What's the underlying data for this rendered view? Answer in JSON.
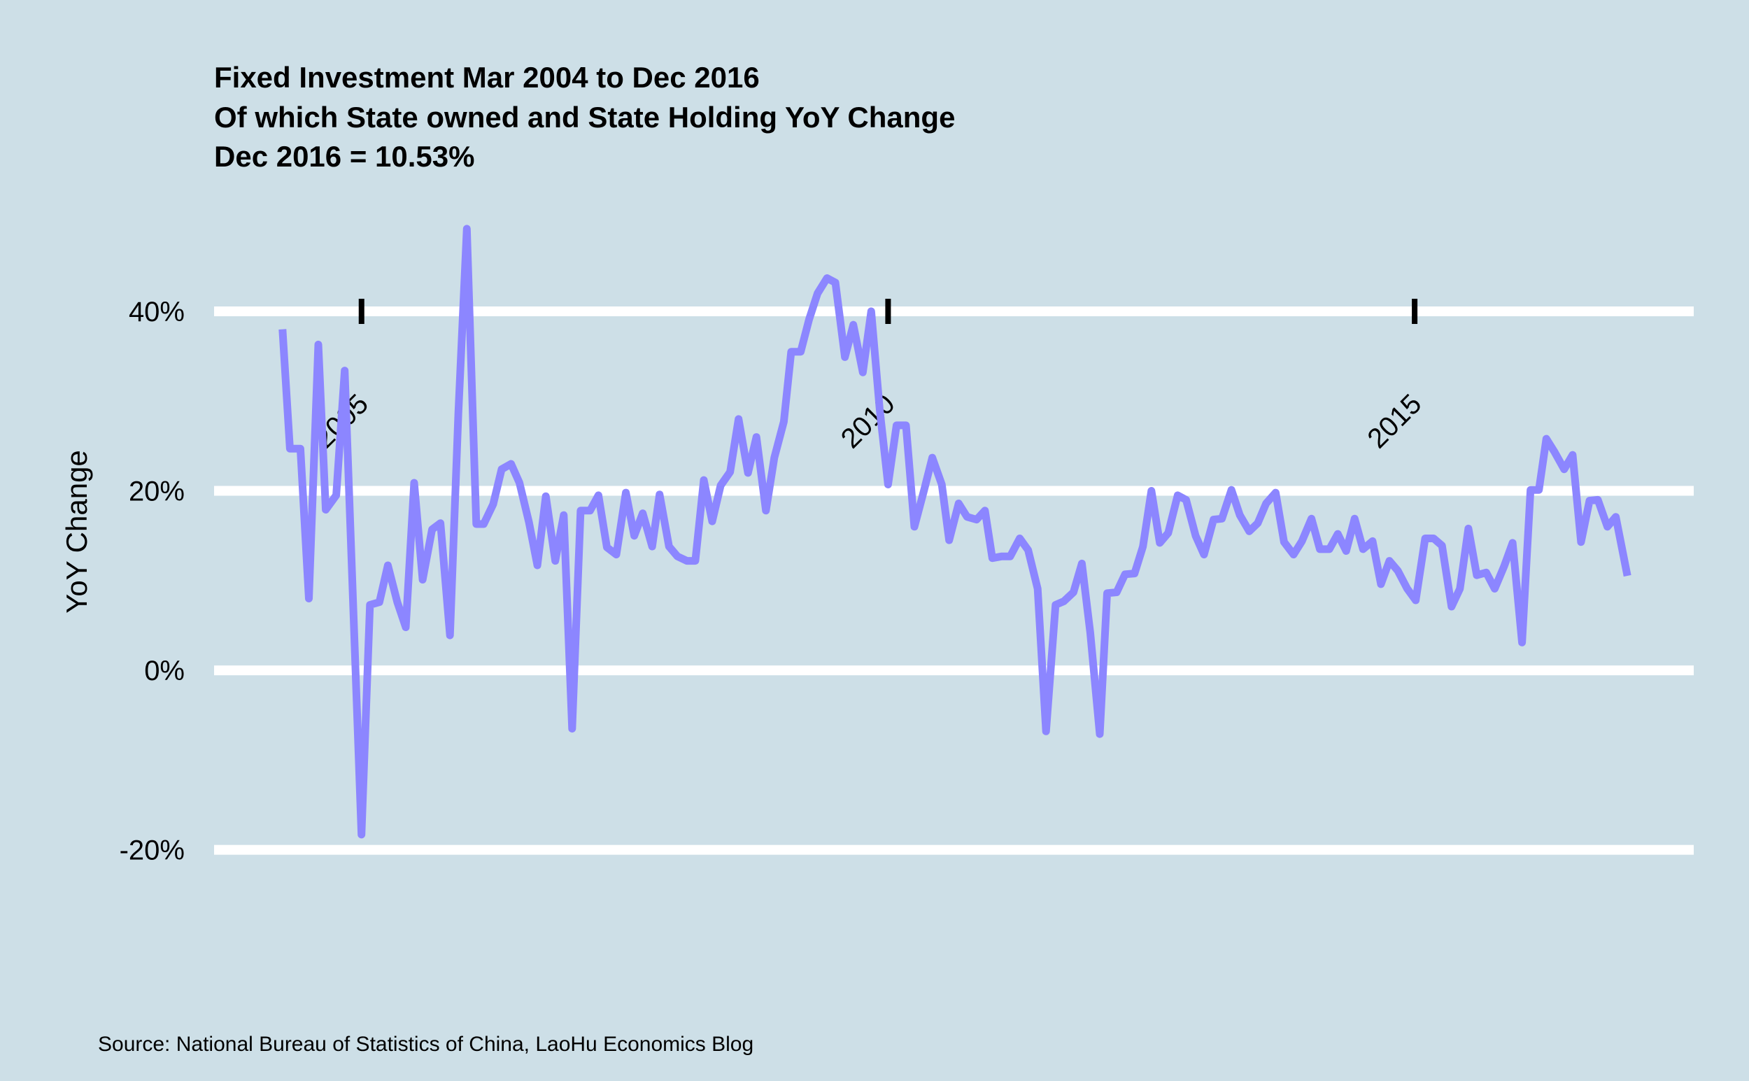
{
  "chart_data": {
    "type": "line",
    "title": [
      "Fixed Investment Mar 2004 to Dec 2016",
      "Of which  State owned and State Holding YoY Change",
      "Dec 2016 = 10.53%"
    ],
    "y_label": "YoY Change",
    "source": "Source: National Bureau of Statistics of China, LaoHu Economics Blog",
    "color": "#8c86ff",
    "x": [
      2004.25,
      2004.32,
      2004.42,
      2004.5,
      2004.59,
      2004.66,
      2004.76,
      2004.84,
      2005.0,
      2005.08,
      2005.17,
      2005.25,
      2005.34,
      2005.42,
      2005.5,
      2005.58,
      2005.67,
      2005.75,
      2005.84,
      2005.92,
      2006.0,
      2006.09,
      2006.16,
      2006.25,
      2006.33,
      2006.42,
      2006.5,
      2006.59,
      2006.67,
      2006.75,
      2006.84,
      2006.92,
      2007.0,
      2007.08,
      2007.17,
      2007.25,
      2007.33,
      2007.42,
      2007.51,
      2007.59,
      2007.67,
      2007.76,
      2007.83,
      2007.92,
      2008.0,
      2008.09,
      2008.17,
      2008.25,
      2008.33,
      2008.41,
      2008.5,
      2008.58,
      2008.67,
      2008.75,
      2008.84,
      2008.92,
      2009.01,
      2009.08,
      2009.17,
      2009.25,
      2009.33,
      2009.42,
      2009.5,
      2009.59,
      2009.67,
      2009.76,
      2009.84,
      2009.92,
      2010.0,
      2010.08,
      2010.17,
      2010.25,
      2010.34,
      2010.42,
      2010.51,
      2010.58,
      2010.67,
      2010.75,
      2010.84,
      2010.92,
      2010.99,
      2011.08,
      2011.16,
      2011.25,
      2011.33,
      2011.42,
      2011.5,
      2011.59,
      2011.67,
      2011.76,
      2011.84,
      2011.92,
      2012.01,
      2012.08,
      2012.17,
      2012.25,
      2012.34,
      2012.42,
      2012.5,
      2012.58,
      2012.66,
      2012.75,
      2012.83,
      2012.92,
      2013.0,
      2013.09,
      2013.17,
      2013.26,
      2013.34,
      2013.43,
      2013.51,
      2013.59,
      2013.68,
      2013.76,
      2013.85,
      2013.93,
      2014.02,
      2014.1,
      2014.19,
      2014.27,
      2014.35,
      2014.43,
      2014.51,
      2014.6,
      2014.68,
      2014.76,
      2014.84,
      2014.93,
      2015.01,
      2015.1,
      2015.18,
      2015.26,
      2015.35,
      2015.43,
      2015.51,
      2015.59,
      2015.68,
      2015.76,
      2015.85,
      2015.93,
      2016.02,
      2016.1,
      2016.18,
      2016.25,
      2016.33,
      2016.42,
      2016.5,
      2016.58,
      2016.66,
      2016.74,
      2016.83,
      2016.91,
      2017.02
    ],
    "values": [
      38.0,
      24.7,
      24.7,
      8.0,
      36.3,
      17.9,
      19.5,
      33.4,
      -18.3,
      7.3,
      7.6,
      11.7,
      7.6,
      4.8,
      20.9,
      10.1,
      15.7,
      16.4,
      3.9,
      28.7,
      49.2,
      16.3,
      16.3,
      18.5,
      22.4,
      23.0,
      20.9,
      16.5,
      11.7,
      19.4,
      12.2,
      17.3,
      -6.5,
      17.8,
      17.8,
      19.5,
      13.7,
      12.9,
      19.8,
      15.0,
      17.5,
      13.8,
      19.6,
      13.8,
      12.7,
      12.2,
      12.2,
      21.2,
      16.6,
      20.6,
      22.1,
      28.0,
      22.0,
      26.0,
      17.8,
      23.7,
      27.7,
      35.5,
      35.5,
      39.1,
      42.0,
      43.7,
      43.2,
      34.9,
      38.5,
      33.2,
      40.0,
      29.1,
      20.7,
      27.3,
      27.3,
      16.0,
      20.0,
      23.7,
      20.7,
      14.5,
      18.6,
      17.1,
      16.8,
      17.8,
      12.5,
      12.7,
      12.7,
      14.7,
      13.4,
      9.1,
      -6.8,
      7.3,
      7.7,
      8.7,
      11.9,
      4.2,
      -7.1,
      8.6,
      8.7,
      10.7,
      10.8,
      13.8,
      20.0,
      14.2,
      15.3,
      19.5,
      19.0,
      15.0,
      12.9,
      16.8,
      16.9,
      20.1,
      17.3,
      15.5,
      16.4,
      18.6,
      19.8,
      14.3,
      12.9,
      14.4,
      16.9,
      13.5,
      13.5,
      15.2,
      13.3,
      16.9,
      13.5,
      14.4,
      9.6,
      12.2,
      11.1,
      9.1,
      7.8,
      14.7,
      14.7,
      13.9,
      7.1,
      9.1,
      15.8,
      10.6,
      10.9,
      9.1,
      11.6,
      14.2,
      3.1,
      20.1,
      20.1,
      25.8,
      24.3,
      22.4,
      24.0,
      14.3,
      18.9,
      19.0,
      16.0,
      17.1,
      10.53
    ],
    "xlim": [
      2003.6,
      2017.65
    ],
    "xticks": [
      2005,
      2010,
      2015
    ],
    "ylim": [
      -24,
      52
    ],
    "yticks": [
      {
        "value": -20,
        "label": "-20%"
      },
      {
        "value": 0,
        "label": "0%"
      },
      {
        "value": 20,
        "label": "20%"
      },
      {
        "value": 40,
        "label": "40%"
      }
    ],
    "grid": true
  }
}
